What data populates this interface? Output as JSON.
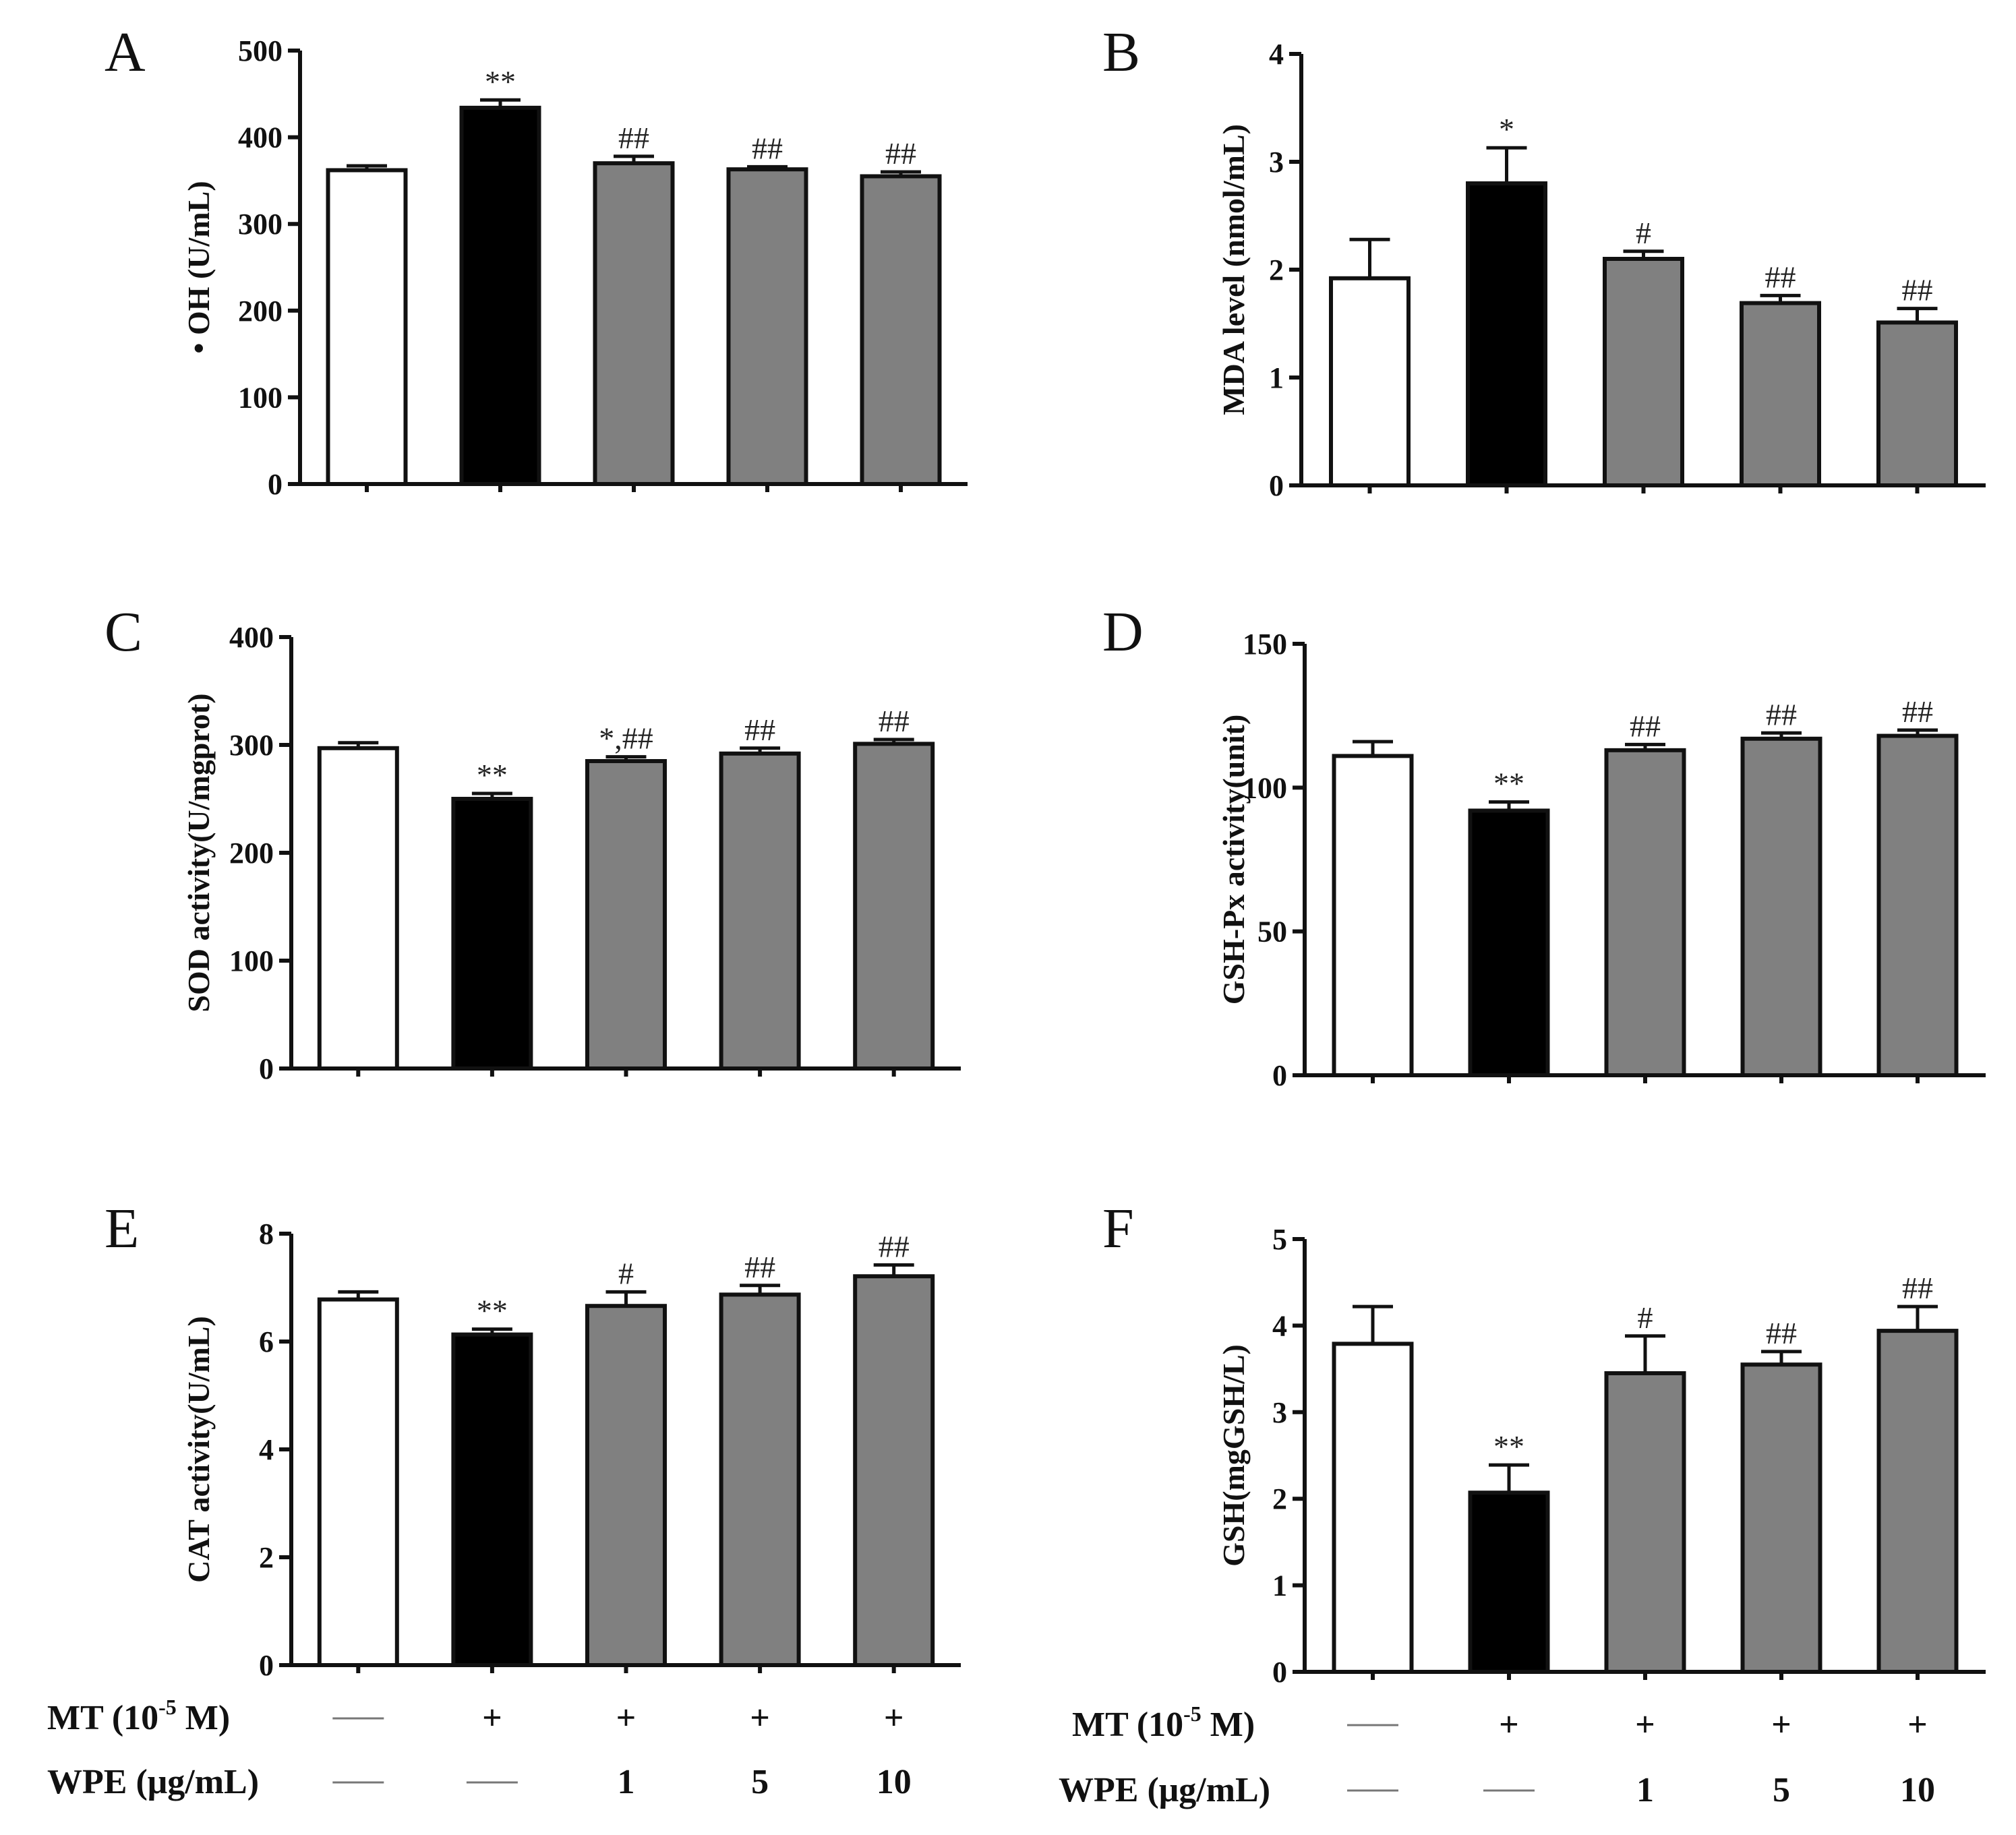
{
  "chart_data": [
    {
      "type": "bar",
      "panel": "A",
      "ylabel": "• OH (U/mL)",
      "ylim": [
        0,
        500
      ],
      "ticks": [
        0,
        100,
        200,
        300,
        400,
        500
      ],
      "categories": [
        "Control",
        "MT",
        "MT+WPE 1",
        "MT+WPE 5",
        "MT+WPE 10"
      ],
      "values": [
        362,
        434,
        370,
        363,
        355
      ],
      "errors": [
        5,
        9,
        8,
        3,
        5
      ],
      "colors": [
        "#ffffff",
        "#000000",
        "#808080",
        "#808080",
        "#808080"
      ],
      "annotations": [
        "",
        "**",
        "##",
        "##",
        "##"
      ]
    },
    {
      "type": "bar",
      "panel": "B",
      "ylabel": "MDA level (nmol/mL)",
      "ylim": [
        0,
        4
      ],
      "ticks": [
        0,
        1,
        2,
        3,
        4
      ],
      "categories": [
        "Control",
        "MT",
        "MT+WPE 1",
        "MT+WPE 5",
        "MT+WPE 10"
      ],
      "values": [
        1.92,
        2.8,
        2.1,
        1.69,
        1.51
      ],
      "errors": [
        0.36,
        0.33,
        0.07,
        0.07,
        0.13
      ],
      "colors": [
        "#ffffff",
        "#000000",
        "#808080",
        "#808080",
        "#808080"
      ],
      "annotations": [
        "",
        "*",
        "#",
        "##",
        "##"
      ]
    },
    {
      "type": "bar",
      "panel": "C",
      "ylabel": "SOD activity(U/mgprot)",
      "ylim": [
        0,
        400
      ],
      "ticks": [
        0,
        100,
        200,
        300,
        400
      ],
      "categories": [
        "Control",
        "MT",
        "MT+WPE 1",
        "MT+WPE 5",
        "MT+WPE 10"
      ],
      "values": [
        297,
        250,
        285,
        292,
        301
      ],
      "errors": [
        5,
        5,
        4,
        5,
        4
      ],
      "colors": [
        "#ffffff",
        "#000000",
        "#808080",
        "#808080",
        "#808080"
      ],
      "annotations": [
        "",
        "**",
        "*,##",
        "##",
        "##"
      ]
    },
    {
      "type": "bar",
      "panel": "D",
      "ylabel": "GSH-Px activity(unit)",
      "ylim": [
        0,
        150
      ],
      "ticks": [
        0,
        50,
        100,
        150
      ],
      "categories": [
        "Control",
        "MT",
        "MT+WPE 1",
        "MT+WPE 5",
        "MT+WPE 10"
      ],
      "values": [
        111,
        92,
        113,
        117,
        118
      ],
      "errors": [
        5,
        3,
        2,
        2,
        2
      ],
      "colors": [
        "#ffffff",
        "#000000",
        "#808080",
        "#808080",
        "#808080"
      ],
      "annotations": [
        "",
        "**",
        "##",
        "##",
        "##"
      ]
    },
    {
      "type": "bar",
      "panel": "E",
      "ylabel": "CAT activity(U/mL)",
      "ylim": [
        0,
        8
      ],
      "ticks": [
        0,
        2,
        4,
        6,
        8
      ],
      "categories": [
        "Control",
        "MT",
        "MT+WPE 1",
        "MT+WPE 5",
        "MT+WPE 10"
      ],
      "values": [
        6.78,
        6.13,
        6.66,
        6.87,
        7.21
      ],
      "errors": [
        0.14,
        0.1,
        0.26,
        0.17,
        0.21
      ],
      "colors": [
        "#ffffff",
        "#000000",
        "#808080",
        "#808080",
        "#808080"
      ],
      "annotations": [
        "",
        "**",
        "#",
        "##",
        "##"
      ]
    },
    {
      "type": "bar",
      "panel": "F",
      "ylabel": "GSH(mgGSH/L)",
      "ylim": [
        0,
        5
      ],
      "ticks": [
        0,
        1,
        2,
        3,
        4,
        5
      ],
      "categories": [
        "Control",
        "MT",
        "MT+WPE 1",
        "MT+WPE 5",
        "MT+WPE 10"
      ],
      "values": [
        3.79,
        2.07,
        3.45,
        3.55,
        3.94
      ],
      "errors": [
        0.43,
        0.32,
        0.43,
        0.15,
        0.28
      ],
      "colors": [
        "#ffffff",
        "#000000",
        "#808080",
        "#808080",
        "#808080"
      ],
      "annotations": [
        "",
        "**",
        "#",
        "##",
        "##"
      ]
    }
  ],
  "conditions": {
    "left": {
      "mt_label": "MT  (10",
      "mt_exp": "-5",
      "mt_tail": " M)",
      "wpe_label": "WPE (μg/mL)",
      "mt_values": [
        "—",
        "+",
        "+",
        "+",
        "+"
      ],
      "wpe_values": [
        "—",
        "—",
        "1",
        "5",
        "10"
      ]
    },
    "right": {
      "mt_label": "MT  (10",
      "mt_exp": "-5",
      "mt_tail": " M)",
      "wpe_label": "WPE (μg/mL)",
      "mt_values": [
        "—",
        "+",
        "+",
        "+",
        "+"
      ],
      "wpe_values": [
        "—",
        "—",
        "1",
        "5",
        "10"
      ]
    }
  }
}
